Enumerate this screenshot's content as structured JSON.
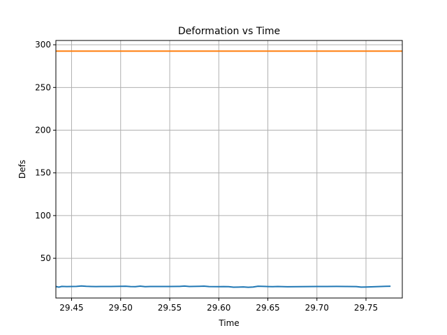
{
  "chart_data": {
    "type": "line",
    "title": "Deformation vs Time",
    "xlabel": "Time",
    "ylabel": "Defs",
    "xlim": [
      29.434,
      29.787
    ],
    "ylim": [
      3.5,
      305
    ],
    "grid": true,
    "xticks": [
      29.45,
      29.5,
      29.55,
      29.6,
      29.65,
      29.7,
      29.75
    ],
    "xtick_labels": [
      "29.45",
      "29.50",
      "29.55",
      "29.60",
      "29.65",
      "29.70",
      "29.75"
    ],
    "yticks": [
      50,
      100,
      150,
      200,
      250,
      300
    ],
    "ytick_labels": [
      "50",
      "100",
      "150",
      "200",
      "250",
      "300"
    ],
    "series": [
      {
        "color": "#1f77b4",
        "x": [
          29.434,
          29.437,
          29.44,
          29.445,
          29.45,
          29.455,
          29.46,
          29.465,
          29.47,
          29.475,
          29.48,
          29.49,
          29.5,
          29.505,
          29.51,
          29.515,
          29.52,
          29.525,
          29.53,
          29.54,
          29.55,
          29.56,
          29.565,
          29.57,
          29.58,
          29.585,
          29.59,
          29.6,
          29.605,
          29.61,
          29.615,
          29.62,
          29.625,
          29.63,
          29.635,
          29.64,
          29.65,
          29.655,
          29.66,
          29.67,
          29.68,
          29.69,
          29.7,
          29.71,
          29.72,
          29.73,
          29.74,
          29.745,
          29.75,
          29.76,
          29.77,
          29.775
        ],
        "y": [
          17.0,
          16.2,
          17.1,
          16.9,
          17.0,
          17.1,
          17.6,
          17.2,
          17.0,
          16.9,
          17.0,
          17.0,
          17.2,
          17.3,
          16.9,
          16.8,
          17.4,
          16.8,
          17.0,
          17.0,
          17.0,
          17.1,
          17.5,
          17.0,
          17.2,
          17.4,
          16.9,
          16.8,
          16.9,
          16.8,
          16.2,
          16.3,
          16.5,
          16.1,
          16.4,
          17.3,
          16.9,
          16.8,
          17.0,
          16.7,
          16.8,
          16.9,
          17.0,
          17.0,
          17.1,
          17.0,
          16.9,
          16.3,
          16.4,
          16.8,
          17.2,
          17.3
        ]
      },
      {
        "color": "#ff7f0e",
        "x": [
          29.434,
          29.787
        ],
        "y": [
          292.5,
          292.5
        ]
      }
    ]
  }
}
